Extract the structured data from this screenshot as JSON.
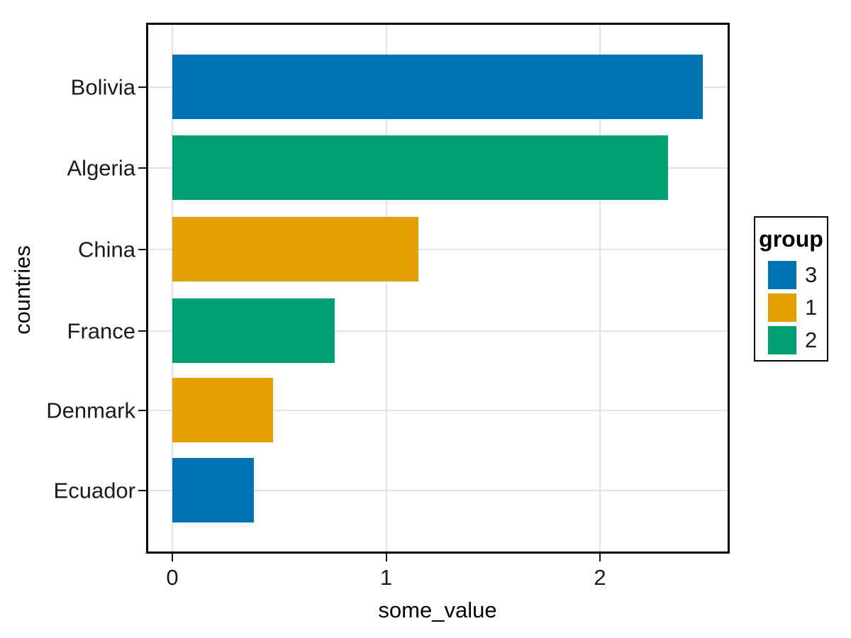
{
  "chart_data": {
    "type": "bar",
    "orientation": "horizontal",
    "title": "",
    "xlabel": "some_value",
    "ylabel": "countries",
    "categories": [
      "Bolivia",
      "Algeria",
      "China",
      "France",
      "Denmark",
      "Ecuador"
    ],
    "values": [
      2.48,
      2.32,
      1.15,
      0.76,
      0.47,
      0.38
    ],
    "groups": [
      "3",
      "2",
      "1",
      "2",
      "1",
      "3"
    ],
    "group_colors": {
      "3": "#0072B2",
      "1": "#E69F00",
      "2": "#009E73"
    },
    "xticks": [
      0,
      1,
      2
    ],
    "xtick_labels": [
      "0",
      "1",
      "2"
    ],
    "xlim": [
      -0.12,
      2.6
    ],
    "grid": "major-only",
    "gridline_color": "#E3E3E3",
    "panel_border_color": "#000000",
    "background_color": "#FFFFFF",
    "legend": {
      "title": "group",
      "position": "right",
      "entries": [
        {
          "label": "3",
          "color": "#0072B2"
        },
        {
          "label": "1",
          "color": "#E69F00"
        },
        {
          "label": "2",
          "color": "#009E73"
        }
      ]
    }
  }
}
